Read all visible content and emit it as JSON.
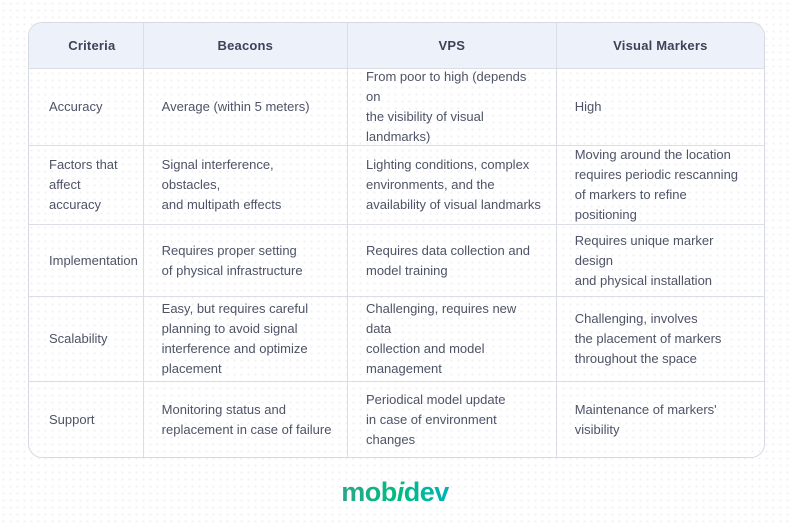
{
  "colors": {
    "page_background": "#ffffff",
    "header_row_background": "#edf1fa",
    "table_border": "#d6d9e1",
    "header_text": "#3d4357",
    "body_text": "#4e5366",
    "logo_gradient": [
      "#2aa58d",
      "#00bd7e",
      "#00b2b8"
    ]
  },
  "chart_data": {
    "type": "table",
    "title": "",
    "columns": [
      "Criteria",
      "Beacons",
      "VPS",
      "Visual Markers"
    ],
    "rows": [
      {
        "cells": [
          "Accuracy",
          "Average (within 5 meters)",
          "From poor to high (depends on\nthe visibility of visual\nlandmarks)",
          "High"
        ]
      },
      {
        "cells": [
          "Factors that\naffect accuracy",
          "Signal interference, obstacles,\nand multipath effects",
          "Lighting conditions, complex\nenvironments, and the\navailability of visual landmarks",
          "Moving around the location\nrequires periodic rescanning\nof markers to refine positioning"
        ]
      },
      {
        "cells": [
          "Implementation",
          "Requires proper setting\nof physical infrastructure",
          "Requires data collection and\nmodel training",
          "Requires unique marker design\nand physical installation"
        ]
      },
      {
        "cells": [
          "Scalability",
          "Easy, but requires careful\nplanning to avoid signal\ninterference and optimize\nplacement",
          "Challenging, requires new data\ncollection and model\nmanagement",
          "Challenging, involves\nthe placement of markers\nthroughout the space"
        ]
      },
      {
        "cells": [
          "Support",
          "Monitoring status and\nreplacement in case of failure",
          "Periodical model update\nin case of environment\nchanges",
          "Maintenance of markers'\nvisibility"
        ]
      }
    ]
  },
  "footer": {
    "logo": {
      "part1": "mob",
      "part2": "i",
      "part3": "dev",
      "full": "mobidev"
    }
  }
}
